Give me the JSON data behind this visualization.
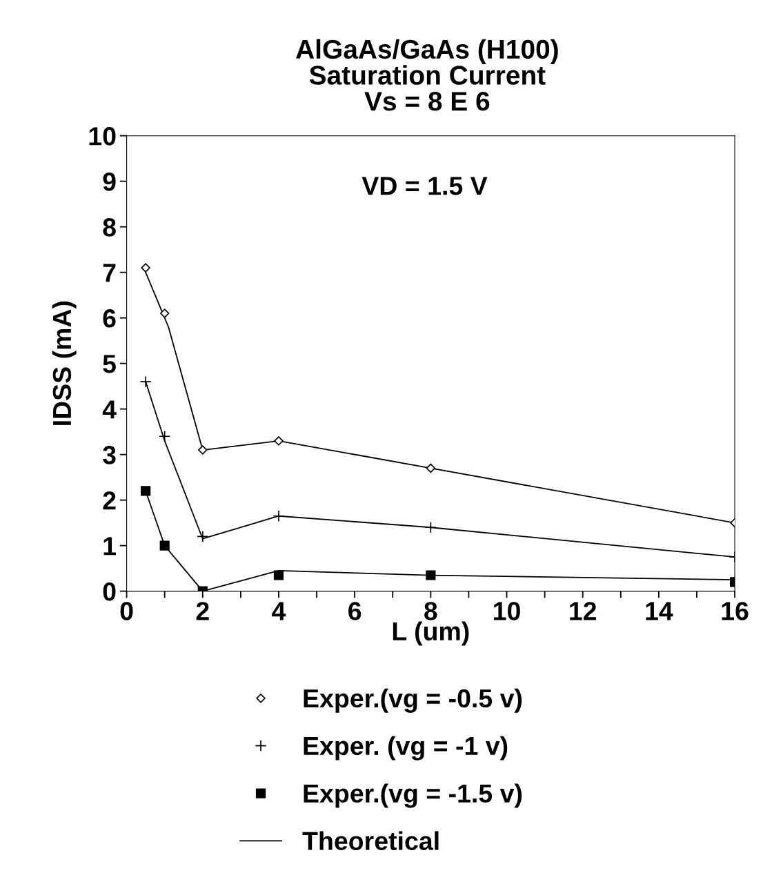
{
  "chart_data": {
    "type": "line",
    "title": "AlGaAs/GaAs (H100)\nSaturation Current\nVs = 8 E 6",
    "xlabel": "L (um)",
    "ylabel": "IDSS (mA)",
    "annotations": [
      "VD = 1.5 V"
    ],
    "xlim": [
      0,
      16
    ],
    "ylim": [
      0,
      10
    ],
    "xticks": [
      0,
      {
        "value": 1,
        "label": null
      },
      2,
      {
        "value": 3,
        "label": null
      },
      4,
      {
        "value": 5,
        "label": null
      },
      6,
      {
        "value": 7,
        "label": null
      },
      8,
      {
        "value": 9,
        "label": null
      },
      10,
      {
        "value": 11,
        "label": null
      },
      12,
      {
        "value": 13,
        "label": null
      },
      14,
      {
        "value": 15,
        "label": null
      },
      16
    ],
    "yticks": [
      0,
      1,
      2,
      3,
      4,
      5,
      6,
      7,
      8,
      9,
      10
    ],
    "grid": false,
    "legend": "bottom",
    "series": [
      {
        "name": "Exper.(vg = -0.5 v)",
        "type": "scatter",
        "marker": "diamond",
        "color": "#000000",
        "x": [
          0.5,
          1,
          2,
          4,
          8,
          16
        ],
        "values": [
          7.1,
          6.1,
          3.1,
          3.3,
          2.7,
          1.5
        ]
      },
      {
        "name": "Exper. (vg = -1 v)",
        "type": "scatter",
        "marker": "cross",
        "color": "#000000",
        "x": [
          0.5,
          1,
          2,
          4,
          8,
          16
        ],
        "values": [
          4.6,
          3.4,
          1.2,
          1.65,
          1.4,
          0.75
        ]
      },
      {
        "name": "Exper.(vg = -1.5 v)",
        "type": "scatter",
        "marker": "square",
        "color": "#000000",
        "x": [
          0.5,
          1,
          2,
          4,
          8,
          16
        ],
        "values": [
          2.2,
          1.0,
          0.0,
          0.35,
          0.35,
          0.2
        ]
      },
      {
        "name": "Theoretical",
        "marker": "none",
        "line_style": "solid",
        "color": "#000000",
        "x": [
          0.5,
          1.1,
          2,
          4,
          8,
          16
        ],
        "values": [
          7.0,
          5.8,
          3.1,
          3.3,
          2.7,
          1.5
        ]
      },
      {
        "marker": "none",
        "line_style": "solid",
        "color": "#000000",
        "x": [
          0.5,
          1,
          2,
          4,
          8,
          16
        ],
        "values": [
          4.6,
          3.3,
          1.15,
          1.65,
          1.4,
          0.75
        ]
      },
      {
        "marker": "none",
        "line_style": "solid",
        "color": "#000000",
        "x": [
          0.5,
          1,
          2,
          4,
          8,
          16
        ],
        "values": [
          2.2,
          1.0,
          0.0,
          0.45,
          0.35,
          0.25
        ]
      }
    ]
  }
}
